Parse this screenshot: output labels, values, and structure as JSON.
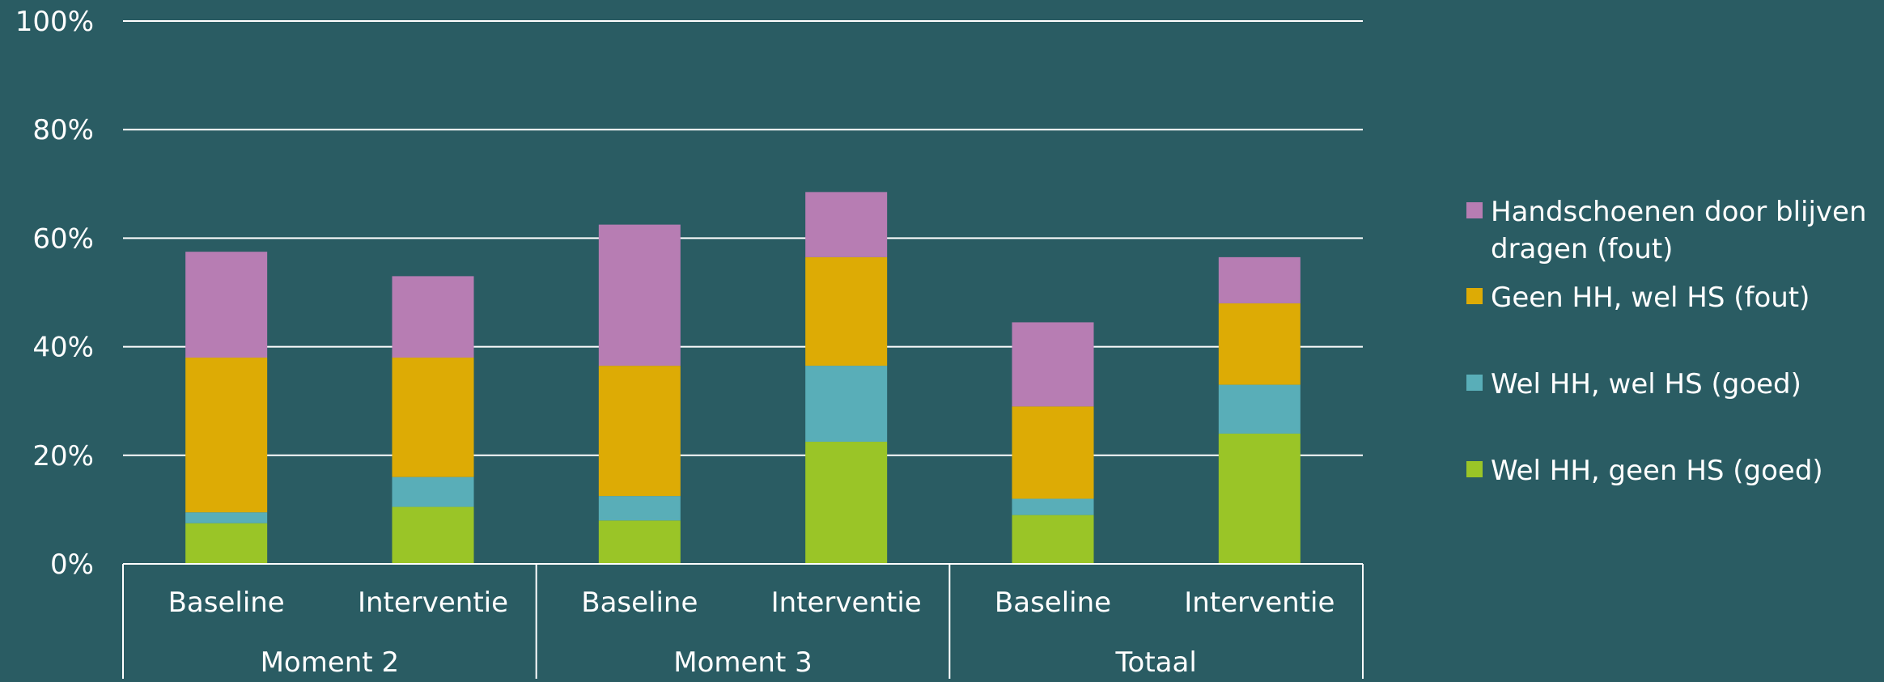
{
  "chart_data": {
    "type": "bar",
    "stacked": true,
    "title": "",
    "xlabel": "",
    "ylabel": "",
    "ylim": [
      0,
      100
    ],
    "y_ticks": [
      "0%",
      "20%",
      "40%",
      "60%",
      "80%",
      "100%"
    ],
    "y_tick_values": [
      0,
      20,
      40,
      60,
      80,
      100
    ],
    "grid": true,
    "legend_position": "right",
    "groups": [
      {
        "label": "Moment 2",
        "categories": [
          "Baseline",
          "Interventie"
        ]
      },
      {
        "label": "Moment 3",
        "categories": [
          "Baseline",
          "Interventie"
        ]
      },
      {
        "label": "Totaal",
        "categories": [
          "Baseline",
          "Interventie"
        ]
      }
    ],
    "categories": [
      "Baseline",
      "Interventie",
      "Baseline",
      "Interventie",
      "Baseline",
      "Interventie"
    ],
    "series": [
      {
        "name": "Wel HH, geen HS (goed)",
        "color": "#9ac527",
        "values": [
          7.5,
          10.5,
          8.0,
          22.5,
          9.0,
          24.0
        ]
      },
      {
        "name": "Wel HH, wel HS (goed)",
        "color": "#59aeb8",
        "values": [
          2.0,
          5.5,
          4.5,
          14.0,
          3.0,
          9.0
        ]
      },
      {
        "name": "Geen HH, wel HS (fout)",
        "color": "#ddab05",
        "values": [
          28.5,
          22.0,
          24.0,
          20.0,
          17.0,
          15.0
        ]
      },
      {
        "name": "Handschoenen door blijven dragen (fout)",
        "color": "#b77db3",
        "values": [
          19.5,
          15.0,
          26.0,
          12.0,
          15.5,
          8.5
        ]
      }
    ]
  }
}
